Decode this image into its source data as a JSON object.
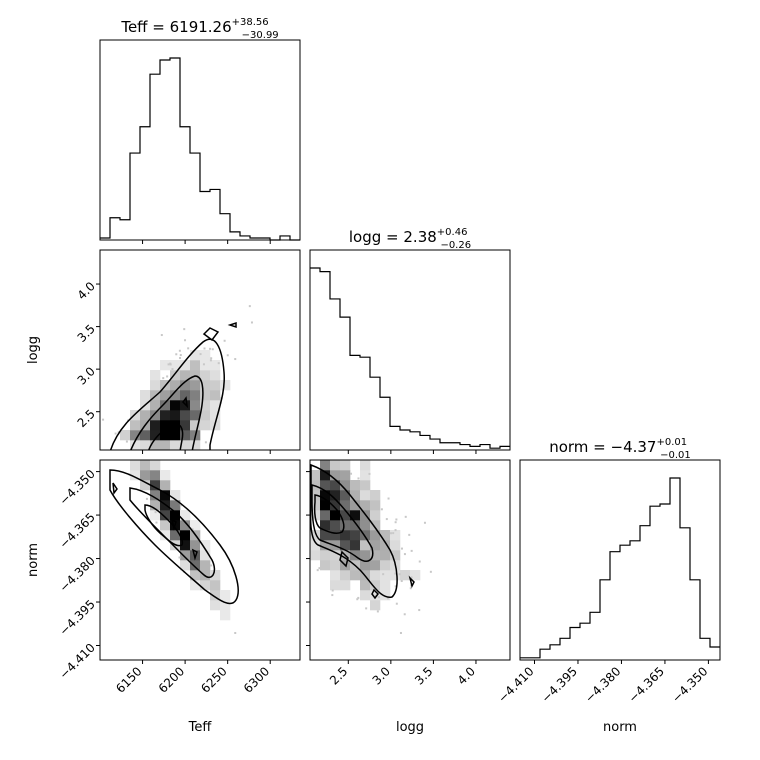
{
  "chart_data": {
    "type": "corner",
    "parameters": [
      "Teff",
      "logg",
      "norm"
    ],
    "titles": [
      {
        "name": "Teff",
        "median": "6191.26",
        "plus": "+38.56",
        "minus": "−30.99"
      },
      {
        "name": "logg",
        "median": "2.38",
        "plus": "+0.46",
        "minus": "−0.26"
      },
      {
        "name": "norm",
        "median": "−4.37",
        "plus": "+0.01",
        "minus": "−0.01"
      }
    ],
    "ranges": {
      "Teff": [
        6100,
        6335
      ],
      "logg": [
        2.05,
        4.4
      ],
      "norm": [
        -4.415,
        -4.346
      ]
    },
    "ticks": {
      "Teff": {
        "values": [
          6150,
          6200,
          6250,
          6300
        ],
        "labels": [
          "6150",
          "6200",
          "6250",
          "6300"
        ]
      },
      "logg": {
        "values": [
          2.5,
          3.0,
          3.5,
          4.0
        ],
        "labels": [
          "2.5",
          "3.0",
          "3.5",
          "4.0"
        ]
      },
      "norm": {
        "values": [
          -4.41,
          -4.395,
          -4.38,
          -4.365,
          -4.35
        ],
        "labels": [
          "−4.410",
          "−4.395",
          "−4.380",
          "−4.365",
          "−4.350"
        ]
      }
    },
    "histograms": {
      "Teff": {
        "edges_start": 6100,
        "bin_width": 11.75,
        "counts": [
          1,
          11,
          10,
          43,
          56,
          82,
          89,
          90,
          56,
          43,
          24,
          25,
          13,
          4,
          2,
          1,
          1,
          0,
          2,
          0
        ]
      },
      "logg": {
        "edges_start": 2.05,
        "bin_width": 0.1175,
        "counts": [
          100,
          98,
          83,
          73,
          52,
          51,
          40,
          29,
          13,
          11,
          10,
          8,
          6,
          4,
          4,
          3,
          2,
          3,
          1,
          2
        ]
      },
      "norm": {
        "edges_start": -4.415,
        "bin_width": 0.00345,
        "counts": [
          1,
          1,
          5,
          7,
          10,
          15,
          17,
          22,
          37,
          50,
          53,
          55,
          62,
          71,
          72,
          84,
          61,
          37,
          10,
          6
        ]
      }
    },
    "scatter_density": "posterior samples shown as grey 2D histograms with 1-2 sigma contours"
  }
}
